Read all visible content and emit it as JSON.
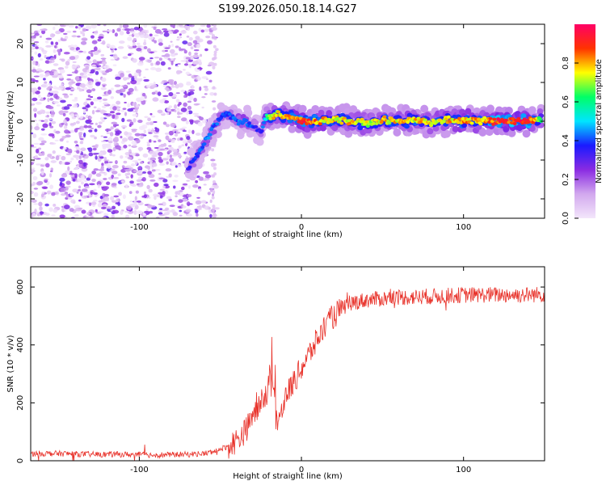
{
  "title": "S199.2026.050.18.14.G27",
  "chart_data": [
    {
      "type": "heatmap",
      "name": "spectrogram",
      "xlabel": "Height of straight line (km)",
      "ylabel": "Frequency (Hz)",
      "xlim": [
        -167,
        150
      ],
      "ylim": [
        -25,
        25
      ],
      "xticks": [
        -100,
        0,
        100
      ],
      "xtick_labels": [
        "-100",
        "0",
        "100"
      ],
      "yticks": [
        -20,
        -10,
        0,
        10,
        20
      ],
      "ytick_labels": [
        "-20",
        "-10",
        "0",
        "10",
        "20"
      ],
      "noise_region_x": [
        -167,
        -52
      ],
      "ridge": {
        "x": [
          -70,
          -65,
          -60,
          -55,
          -50,
          -45,
          -40,
          -35,
          -30,
          -25,
          -22,
          -20,
          -15,
          -10,
          -5,
          0,
          10,
          20,
          30,
          40,
          50,
          60,
          70,
          80,
          90,
          100,
          110,
          120,
          130,
          140,
          148
        ],
        "freq": [
          -12,
          -9,
          -6,
          -2,
          1,
          2,
          0,
          0,
          -1,
          -3,
          1,
          1,
          2,
          1,
          1,
          0,
          0,
          0.5,
          0,
          -0.5,
          0.3,
          0,
          0.5,
          -0.3,
          0.3,
          0,
          0.2,
          0,
          0,
          0,
          0.5
        ],
        "amplitude": [
          0.35,
          0.4,
          0.45,
          0.45,
          0.4,
          0.4,
          0.45,
          0.45,
          0.4,
          0.35,
          0.55,
          0.75,
          0.8,
          0.8,
          0.85,
          0.95,
          0.85,
          0.8,
          0.8,
          0.75,
          0.8,
          0.8,
          0.8,
          0.8,
          0.8,
          0.85,
          0.8,
          0.95,
          0.95,
          0.95,
          0.7
        ]
      },
      "colorbar": {
        "label": "Normalized spectral amplitude",
        "range": [
          0,
          1
        ],
        "ticks": [
          0.0,
          0.2,
          0.4,
          0.6,
          0.8
        ],
        "tick_labels": [
          "0.0",
          "0.2",
          "0.4",
          "0.6",
          "0.8"
        ],
        "colors": [
          "#f3e6fb",
          "#d2a8ee",
          "#8a2be2",
          "#1a1aff",
          "#00e5ff",
          "#00ff66",
          "#ffff00",
          "#ff3300",
          "#ff0066"
        ]
      }
    },
    {
      "type": "line",
      "name": "snr",
      "xlabel": "Height of straight line (km)",
      "ylabel": "SNR (10 * v/v)",
      "xlim": [
        -167,
        150
      ],
      "ylim": [
        0,
        670
      ],
      "xticks": [
        -100,
        0,
        100
      ],
      "xtick_labels": [
        "-100",
        "0",
        "100"
      ],
      "yticks": [
        0,
        200,
        400,
        600
      ],
      "ytick_labels": [
        "0",
        "200",
        "400",
        "600"
      ],
      "color": "#e8322a",
      "series": [
        {
          "name": "SNR",
          "x": [
            -167,
            -150,
            -130,
            -110,
            -90,
            -70,
            -60,
            -55,
            -50,
            -45,
            -40,
            -35,
            -30,
            -25,
            -20,
            -18,
            -15,
            -12,
            -10,
            -5,
            0,
            5,
            10,
            15,
            20,
            25,
            30,
            40,
            50,
            60,
            70,
            80,
            90,
            100,
            110,
            120,
            130,
            140,
            150
          ],
          "values": [
            25,
            25,
            22,
            22,
            20,
            22,
            25,
            30,
            40,
            50,
            70,
            100,
            150,
            200,
            250,
            270,
            110,
            180,
            220,
            270,
            320,
            370,
            420,
            470,
            500,
            525,
            545,
            555,
            560,
            565,
            565,
            568,
            570,
            572,
            573,
            573,
            573,
            573,
            575
          ]
        }
      ]
    }
  ]
}
